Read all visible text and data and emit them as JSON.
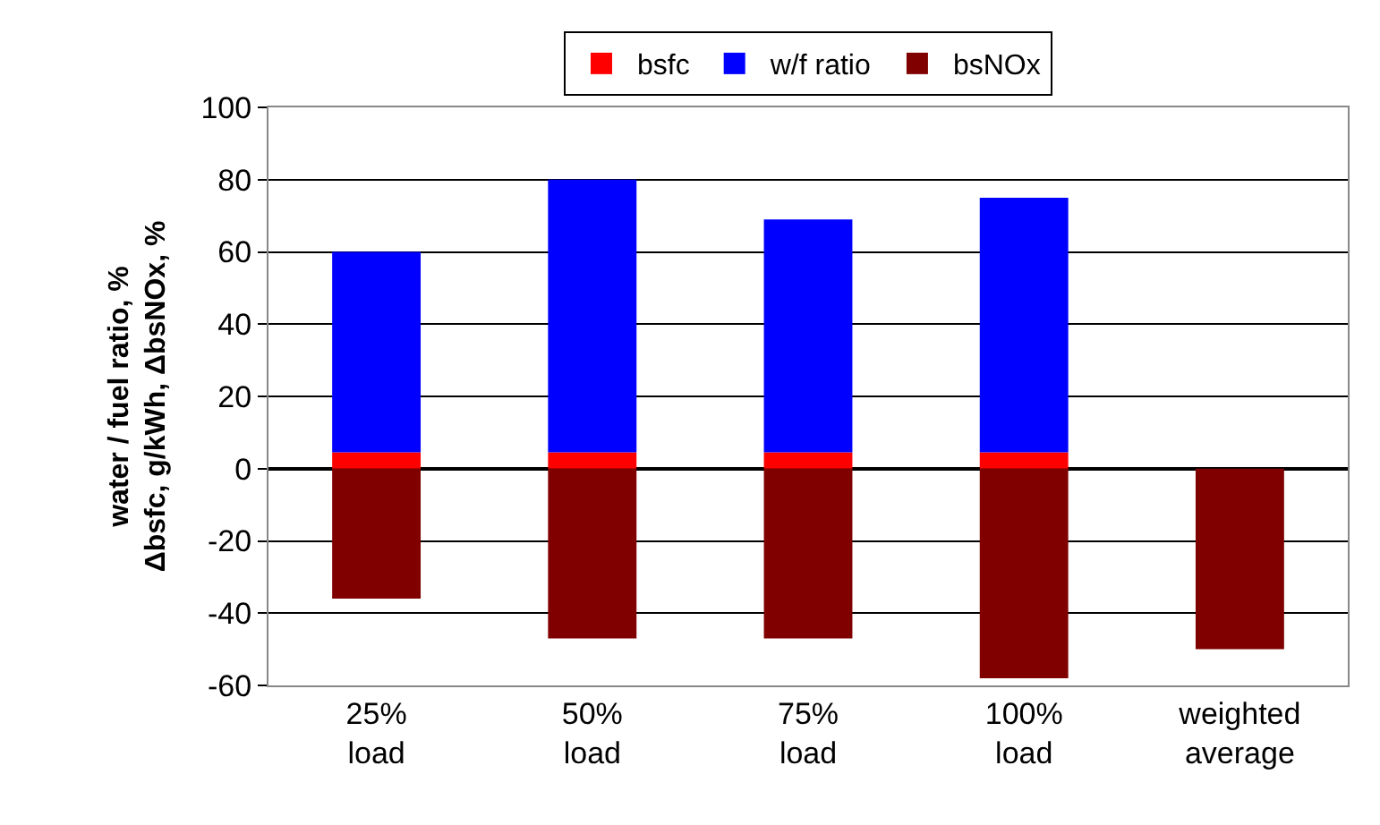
{
  "chart_data": {
    "type": "bar",
    "stacked": true,
    "ylabel": "water / fuel ratio, %\nΔbsfc, g/kWh, ΔbsNOx, %",
    "categories": [
      "25%\nload",
      "50%\nload",
      "75%\nload",
      "100%\nload",
      "weighted\naverage"
    ],
    "series": [
      {
        "name": "bsfc",
        "color": "#ff0000",
        "values": [
          4.5,
          4.5,
          4.5,
          4.5,
          null
        ]
      },
      {
        "name": "w/f ratio",
        "color": "#0000ff",
        "values": [
          55.5,
          75.5,
          64.5,
          70.5,
          null
        ]
      },
      {
        "name": "bsNOx",
        "color": "#800000",
        "values": [
          -36,
          -47,
          -47,
          -58,
          -50
        ]
      }
    ],
    "ylim": [
      -60,
      100
    ],
    "yticks": [
      -60,
      -40,
      -20,
      0,
      20,
      40,
      60,
      80,
      100
    ],
    "grid": "y",
    "legend": "top"
  }
}
